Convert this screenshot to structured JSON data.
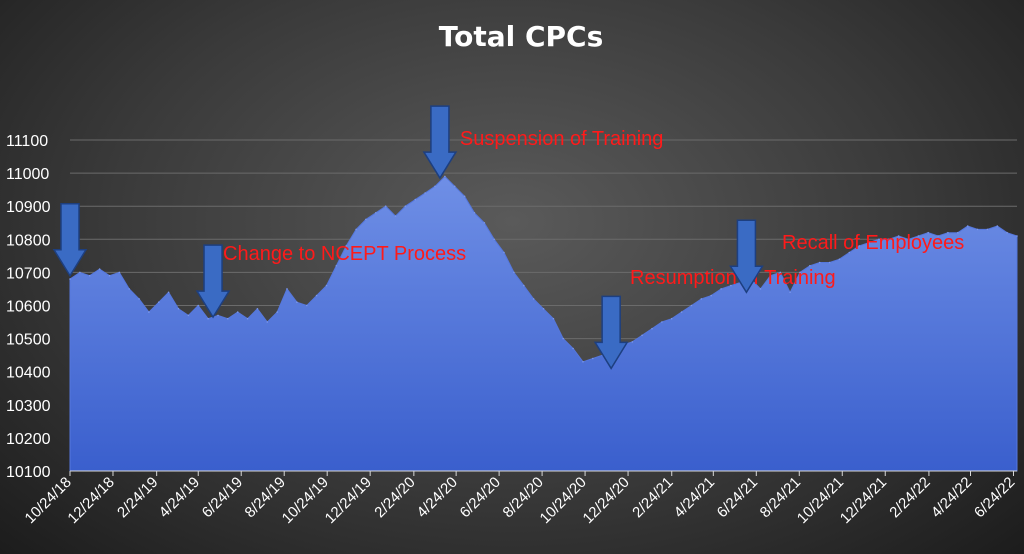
{
  "chart_data": {
    "type": "area",
    "title": "Total CPCs",
    "xlabel": "",
    "ylabel": "",
    "ylim": [
      10100,
      11100
    ],
    "yticks": [
      10100,
      10200,
      10300,
      10400,
      10500,
      10600,
      10700,
      10800,
      10900,
      11000,
      11100
    ],
    "xticks": [
      "10/24/18",
      "12/24/18",
      "2/24/19",
      "4/24/19",
      "6/24/19",
      "8/24/19",
      "10/24/19",
      "12/24/19",
      "2/24/20",
      "4/24/20",
      "6/24/20",
      "8/24/20",
      "10/24/20",
      "12/24/20",
      "2/24/21",
      "4/24/21",
      "6/24/21",
      "8/24/21",
      "10/24/21",
      "12/24/21",
      "2/24/22",
      "4/24/22",
      "6/24/22"
    ],
    "grid": true,
    "area_color": "#3a5fcd",
    "series": [
      {
        "x": [
          "10/24/18",
          "11/7/18",
          "11/21/18",
          "12/5/18",
          "12/19/18",
          "1/2/19",
          "1/16/19",
          "1/30/19",
          "2/13/19",
          "2/27/19",
          "3/13/19",
          "3/27/19",
          "4/10/19",
          "4/24/19",
          "5/8/19",
          "5/22/19",
          "6/5/19",
          "6/19/19",
          "7/3/19",
          "7/17/19",
          "7/31/19",
          "8/14/19",
          "8/28/19",
          "9/11/19",
          "9/25/19",
          "10/9/19",
          "10/23/19",
          "11/6/19",
          "11/20/19",
          "12/4/19",
          "12/18/19",
          "1/1/20",
          "1/15/20",
          "1/29/20",
          "2/12/20",
          "2/26/20",
          "3/11/20",
          "3/25/20",
          "4/8/20",
          "4/22/20",
          "5/6/20",
          "5/20/20",
          "6/3/20",
          "6/17/20",
          "7/1/20",
          "7/15/20",
          "7/29/20",
          "8/12/20",
          "8/26/20",
          "9/9/20",
          "9/23/20",
          "10/7/20",
          "10/21/20",
          "11/4/20",
          "11/18/20",
          "12/2/20",
          "12/16/20",
          "12/30/20",
          "1/13/21",
          "1/27/21",
          "2/10/21",
          "2/24/21",
          "3/10/21",
          "3/24/21",
          "4/7/21",
          "4/21/21",
          "5/5/21",
          "5/19/21",
          "6/2/21",
          "6/16/21",
          "6/30/21",
          "7/14/21",
          "7/28/21",
          "8/11/21",
          "8/25/21",
          "9/8/21",
          "9/22/21",
          "10/6/21",
          "10/20/21",
          "11/3/21",
          "11/17/21",
          "12/1/21",
          "12/15/21",
          "12/29/21",
          "1/12/22",
          "1/26/22",
          "2/9/22",
          "2/23/22",
          "3/9/22",
          "3/23/22",
          "4/6/22",
          "4/20/22",
          "5/4/22",
          "5/18/22",
          "6/1/22",
          "6/15/22",
          "6/29/22"
        ],
        "values": [
          10680,
          10700,
          10690,
          10710,
          10690,
          10700,
          10650,
          10620,
          10580,
          10610,
          10640,
          10590,
          10570,
          10600,
          10560,
          10570,
          10560,
          10580,
          10560,
          10590,
          10550,
          10580,
          10650,
          10610,
          10600,
          10630,
          10660,
          10720,
          10780,
          10830,
          10860,
          10880,
          10900,
          10870,
          10900,
          10920,
          10940,
          10960,
          10990,
          10960,
          10930,
          10880,
          10850,
          10800,
          10760,
          10700,
          10660,
          10620,
          10590,
          10560,
          10500,
          10470,
          10430,
          10440,
          10450,
          10460,
          10480,
          10490,
          10510,
          10530,
          10550,
          10560,
          10580,
          10600,
          10620,
          10630,
          10650,
          10660,
          10670,
          10680,
          10650,
          10690,
          10700,
          10640,
          10700,
          10720,
          10730,
          10730,
          10740,
          10760,
          10780,
          10790,
          10800,
          10800,
          10810,
          10800,
          10810,
          10820,
          10810,
          10820,
          10820,
          10840,
          10830,
          10830,
          10840,
          10820,
          10810
        ]
      }
    ],
    "annotations": [
      {
        "label": "Change to NCEPT Process",
        "arrow_date": "5/15/19",
        "arrow_value": 10565
      },
      {
        "label": "Suspension of Training",
        "arrow_date": "4/1/20",
        "arrow_value": 10985
      },
      {
        "label": "Resumption of Training",
        "arrow_date": "11/30/20",
        "arrow_value": 10410
      },
      {
        "label": "Recall of Employees",
        "arrow_date": "6/10/21",
        "arrow_value": 10640
      },
      {
        "label": "",
        "arrow_date": "10/24/18",
        "arrow_value": 10690
      }
    ]
  }
}
